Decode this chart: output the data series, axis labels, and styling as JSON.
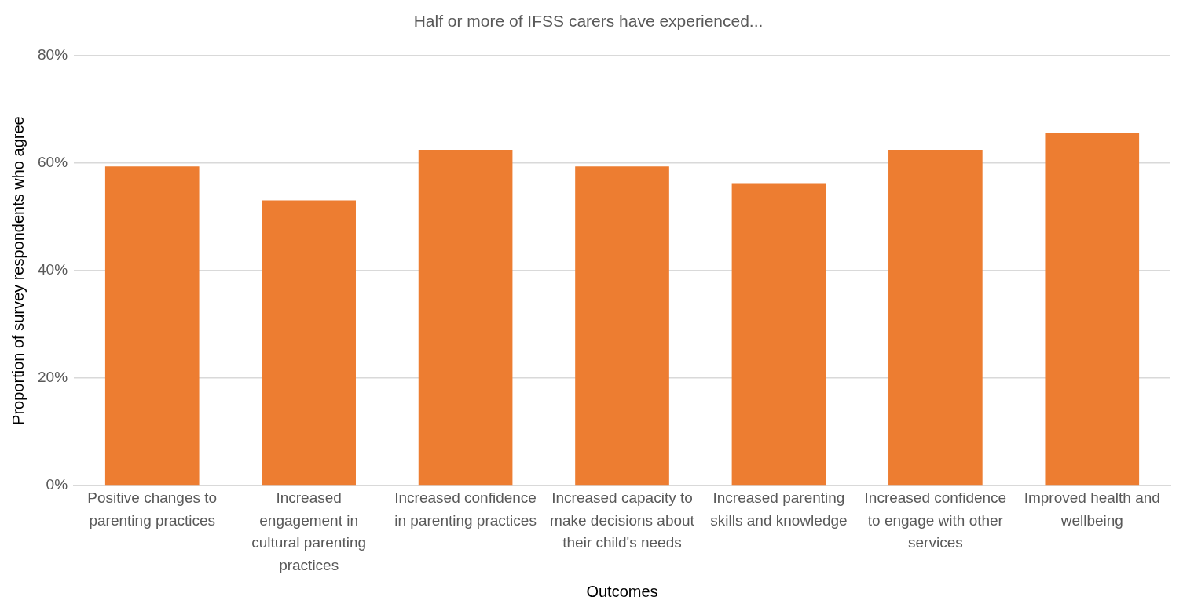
{
  "chart_data": {
    "type": "bar",
    "title": "Half or more of IFSS carers have experienced...",
    "xlabel": "Outcomes",
    "ylabel": "Proportion of survey respondents who agree",
    "categories": [
      "Positive changes to parenting practices",
      "Increased engagement in cultural parenting practices",
      "Increased confidence in parenting practices",
      "Increased capacity to make decisions about their child's needs",
      "Increased parenting skills and knowledge",
      "Increased confidence to engage with other services",
      "Improved health and wellbeing"
    ],
    "values": [
      59.4,
      53.1,
      62.5,
      59.4,
      56.3,
      62.5,
      65.6
    ],
    "color": "#ed7d31",
    "ylim": [
      0,
      80
    ],
    "yticks": [
      {
        "value": 0,
        "label": "0%"
      },
      {
        "value": 20,
        "label": "20%"
      },
      {
        "value": 40,
        "label": "40%"
      },
      {
        "value": 60,
        "label": "60%"
      },
      {
        "value": 80,
        "label": "80%"
      }
    ],
    "grid": "y",
    "legend": false
  }
}
